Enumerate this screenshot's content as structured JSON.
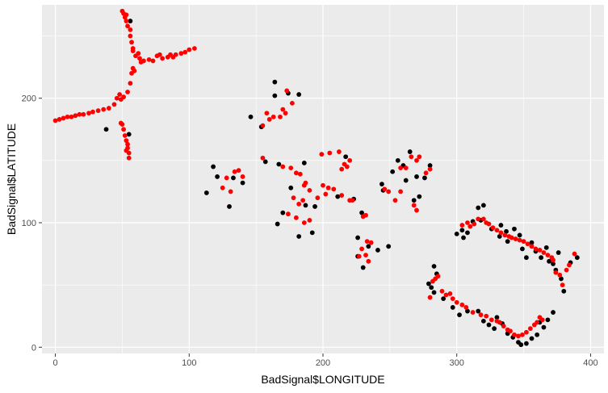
{
  "chart_data": {
    "type": "scatter",
    "title": "",
    "xlabel": "BadSignal$LONGITUDE",
    "ylabel": "BadSignal$LATITUDE",
    "xlim": [
      -10,
      410
    ],
    "ylim": [
      -5,
      275
    ],
    "x_ticks": [
      0,
      100,
      200,
      300,
      400
    ],
    "y_ticks": [
      0,
      100,
      200
    ],
    "x_tick_labels": [
      "0",
      "100",
      "200",
      "300",
      "400"
    ],
    "y_tick_labels": [
      "0",
      "100",
      "200"
    ],
    "grid": true,
    "legend": "none",
    "colors": {
      "panel_background": "#ebebeb",
      "grid_major": "#ffffff",
      "black_points": "#000000",
      "red_points": "#ff0000"
    },
    "series": [
      {
        "color": "#000000",
        "points": [
          [
            56,
            262
          ],
          [
            55,
            171
          ],
          [
            38,
            175
          ],
          [
            164,
            202
          ],
          [
            174,
            204
          ],
          [
            182,
            203
          ],
          [
            164,
            213
          ],
          [
            146,
            185
          ],
          [
            154,
            177
          ],
          [
            157,
            149
          ],
          [
            167,
            147
          ],
          [
            186,
            148
          ],
          [
            118,
            145
          ],
          [
            113,
            124
          ],
          [
            121,
            137
          ],
          [
            130,
            113
          ],
          [
            133,
            136
          ],
          [
            140,
            132
          ],
          [
            166,
            99
          ],
          [
            170,
            108
          ],
          [
            176,
            128
          ],
          [
            182,
            89
          ],
          [
            187,
            114
          ],
          [
            192,
            92
          ],
          [
            194,
            113
          ],
          [
            211,
            121
          ],
          [
            217,
            153
          ],
          [
            223,
            119
          ],
          [
            226,
            88
          ],
          [
            229,
            108
          ],
          [
            234,
            81
          ],
          [
            241,
            78
          ],
          [
            249,
            81
          ],
          [
            244,
            131
          ],
          [
            245,
            126
          ],
          [
            252,
            141
          ],
          [
            256,
            150
          ],
          [
            260,
            146
          ],
          [
            262,
            134
          ],
          [
            265,
            157
          ],
          [
            268,
            118
          ],
          [
            270,
            137
          ],
          [
            272,
            121
          ],
          [
            276,
            136
          ],
          [
            280,
            146
          ],
          [
            279,
            51
          ],
          [
            281,
            48
          ],
          [
            283,
            65
          ],
          [
            290,
            39
          ],
          [
            297,
            32
          ],
          [
            300,
            91
          ],
          [
            304,
            94
          ],
          [
            305,
            88
          ],
          [
            308,
            92
          ],
          [
            312,
            101
          ],
          [
            316,
            112
          ],
          [
            318,
            102
          ],
          [
            320,
            114
          ],
          [
            326,
            95
          ],
          [
            332,
            89
          ],
          [
            333,
            98
          ],
          [
            337,
            93
          ],
          [
            338,
            85
          ],
          [
            343,
            95
          ],
          [
            347,
            90
          ],
          [
            349,
            79
          ],
          [
            352,
            72
          ],
          [
            356,
            84
          ],
          [
            359,
            77
          ],
          [
            363,
            72
          ],
          [
            367,
            80
          ],
          [
            369,
            69
          ],
          [
            372,
            67
          ],
          [
            374,
            62
          ],
          [
            376,
            76
          ],
          [
            378,
            55
          ],
          [
            380,
            45
          ],
          [
            385,
            68
          ],
          [
            390,
            72
          ],
          [
            302,
            26
          ],
          [
            308,
            29
          ],
          [
            316,
            29
          ],
          [
            320,
            21
          ],
          [
            324,
            18
          ],
          [
            328,
            15
          ],
          [
            330,
            24
          ],
          [
            334,
            19
          ],
          [
            338,
            11
          ],
          [
            342,
            8
          ],
          [
            346,
            4
          ],
          [
            348,
            2
          ],
          [
            352,
            3
          ],
          [
            356,
            7
          ],
          [
            360,
            10
          ],
          [
            362,
            20
          ],
          [
            365,
            16
          ],
          [
            368,
            22
          ],
          [
            372,
            28
          ],
          [
            285,
            59
          ],
          [
            283,
            44
          ],
          [
            230,
            64
          ],
          [
            226,
            73
          ]
        ]
      },
      {
        "color": "#ff0000",
        "points": [
          [
            0,
            182
          ],
          [
            3,
            183
          ],
          [
            6,
            184
          ],
          [
            9,
            185
          ],
          [
            12,
            185
          ],
          [
            15,
            186
          ],
          [
            18,
            187
          ],
          [
            21,
            187
          ],
          [
            25,
            188
          ],
          [
            28,
            189
          ],
          [
            32,
            190
          ],
          [
            36,
            191
          ],
          [
            40,
            192
          ],
          [
            44,
            195
          ],
          [
            46,
            200
          ],
          [
            48,
            203
          ],
          [
            49,
            199
          ],
          [
            51,
            201
          ],
          [
            49,
            180
          ],
          [
            51,
            175
          ],
          [
            52,
            170
          ],
          [
            53,
            166
          ],
          [
            54,
            163
          ],
          [
            54,
            160
          ],
          [
            55,
            156
          ],
          [
            55,
            152
          ],
          [
            53,
            158
          ],
          [
            50,
            179
          ],
          [
            54,
            205
          ],
          [
            56,
            212
          ],
          [
            57,
            220
          ],
          [
            58,
            224
          ],
          [
            59,
            222
          ],
          [
            58,
            240
          ],
          [
            57,
            245
          ],
          [
            56,
            250
          ],
          [
            56,
            255
          ],
          [
            54,
            258
          ],
          [
            53,
            262
          ],
          [
            52,
            265
          ],
          [
            51,
            268
          ],
          [
            50,
            270
          ],
          [
            53,
            267
          ],
          [
            58,
            238
          ],
          [
            60,
            234
          ],
          [
            62,
            236
          ],
          [
            63,
            232
          ],
          [
            64,
            229
          ],
          [
            66,
            230
          ],
          [
            70,
            231
          ],
          [
            73,
            230
          ],
          [
            76,
            234
          ],
          [
            78,
            235
          ],
          [
            80,
            232
          ],
          [
            84,
            233
          ],
          [
            86,
            235
          ],
          [
            88,
            233
          ],
          [
            90,
            235
          ],
          [
            94,
            236
          ],
          [
            97,
            237
          ],
          [
            100,
            239
          ],
          [
            104,
            240
          ],
          [
            155,
            178
          ],
          [
            158,
            188
          ],
          [
            160,
            183
          ],
          [
            163,
            185
          ],
          [
            168,
            185
          ],
          [
            170,
            191
          ],
          [
            172,
            188
          ],
          [
            173,
            206
          ],
          [
            177,
            196
          ],
          [
            155,
            152
          ],
          [
            170,
            145
          ],
          [
            176,
            144
          ],
          [
            180,
            140
          ],
          [
            183,
            139
          ],
          [
            187,
            132
          ],
          [
            199,
            155
          ],
          [
            205,
            156
          ],
          [
            212,
            157
          ],
          [
            214,
            143
          ],
          [
            216,
            147
          ],
          [
            218,
            145
          ],
          [
            220,
            150
          ],
          [
            186,
            130
          ],
          [
            178,
            120
          ],
          [
            182,
            115
          ],
          [
            185,
            118
          ],
          [
            190,
            126
          ],
          [
            200,
            130
          ],
          [
            204,
            128
          ],
          [
            174,
            107
          ],
          [
            180,
            104
          ],
          [
            186,
            100
          ],
          [
            190,
            102
          ],
          [
            196,
            120
          ],
          [
            202,
            123
          ],
          [
            208,
            127
          ],
          [
            214,
            122
          ],
          [
            220,
            118
          ],
          [
            222,
            118
          ],
          [
            125,
            128
          ],
          [
            128,
            136
          ],
          [
            131,
            125
          ],
          [
            134,
            141
          ],
          [
            137,
            142
          ],
          [
            140,
            137
          ],
          [
            227,
            73
          ],
          [
            229,
            79
          ],
          [
            233,
            85
          ],
          [
            236,
            84
          ],
          [
            234,
            69
          ],
          [
            232,
            74
          ],
          [
            230,
            105
          ],
          [
            232,
            106
          ],
          [
            246,
            127
          ],
          [
            249,
            125
          ],
          [
            254,
            118
          ],
          [
            258,
            125
          ],
          [
            258,
            144
          ],
          [
            262,
            144
          ],
          [
            266,
            153
          ],
          [
            270,
            150
          ],
          [
            272,
            153
          ],
          [
            268,
            114
          ],
          [
            270,
            110
          ],
          [
            277,
            140
          ],
          [
            280,
            143
          ],
          [
            280,
            40
          ],
          [
            282,
            53
          ],
          [
            284,
            55
          ],
          [
            286,
            57
          ],
          [
            289,
            45
          ],
          [
            292,
            42
          ],
          [
            295,
            43
          ],
          [
            297,
            39
          ],
          [
            300,
            36
          ],
          [
            304,
            34
          ],
          [
            307,
            32
          ],
          [
            312,
            28
          ],
          [
            318,
            26
          ],
          [
            322,
            25
          ],
          [
            326,
            22
          ],
          [
            330,
            21
          ],
          [
            332,
            20
          ],
          [
            335,
            17
          ],
          [
            338,
            14
          ],
          [
            340,
            13
          ],
          [
            343,
            10
          ],
          [
            346,
            9
          ],
          [
            349,
            10
          ],
          [
            352,
            12
          ],
          [
            355,
            15
          ],
          [
            358,
            18
          ],
          [
            360,
            20
          ],
          [
            362,
            24
          ],
          [
            364,
            22
          ],
          [
            310,
            97
          ],
          [
            313,
            99
          ],
          [
            316,
            103
          ],
          [
            320,
            103
          ],
          [
            322,
            100
          ],
          [
            324,
            99
          ],
          [
            327,
            96
          ],
          [
            330,
            94
          ],
          [
            333,
            92
          ],
          [
            336,
            90
          ],
          [
            339,
            89
          ],
          [
            341,
            88
          ],
          [
            344,
            87
          ],
          [
            347,
            86
          ],
          [
            350,
            85
          ],
          [
            353,
            83
          ],
          [
            356,
            81
          ],
          [
            359,
            79
          ],
          [
            362,
            78
          ],
          [
            365,
            76
          ],
          [
            368,
            74
          ],
          [
            371,
            72
          ],
          [
            372,
            70
          ],
          [
            374,
            60
          ],
          [
            377,
            58
          ],
          [
            379,
            50
          ],
          [
            382,
            62
          ],
          [
            384,
            66
          ],
          [
            388,
            75
          ],
          [
            304,
            98
          ],
          [
            308,
            100
          ]
        ]
      }
    ]
  }
}
